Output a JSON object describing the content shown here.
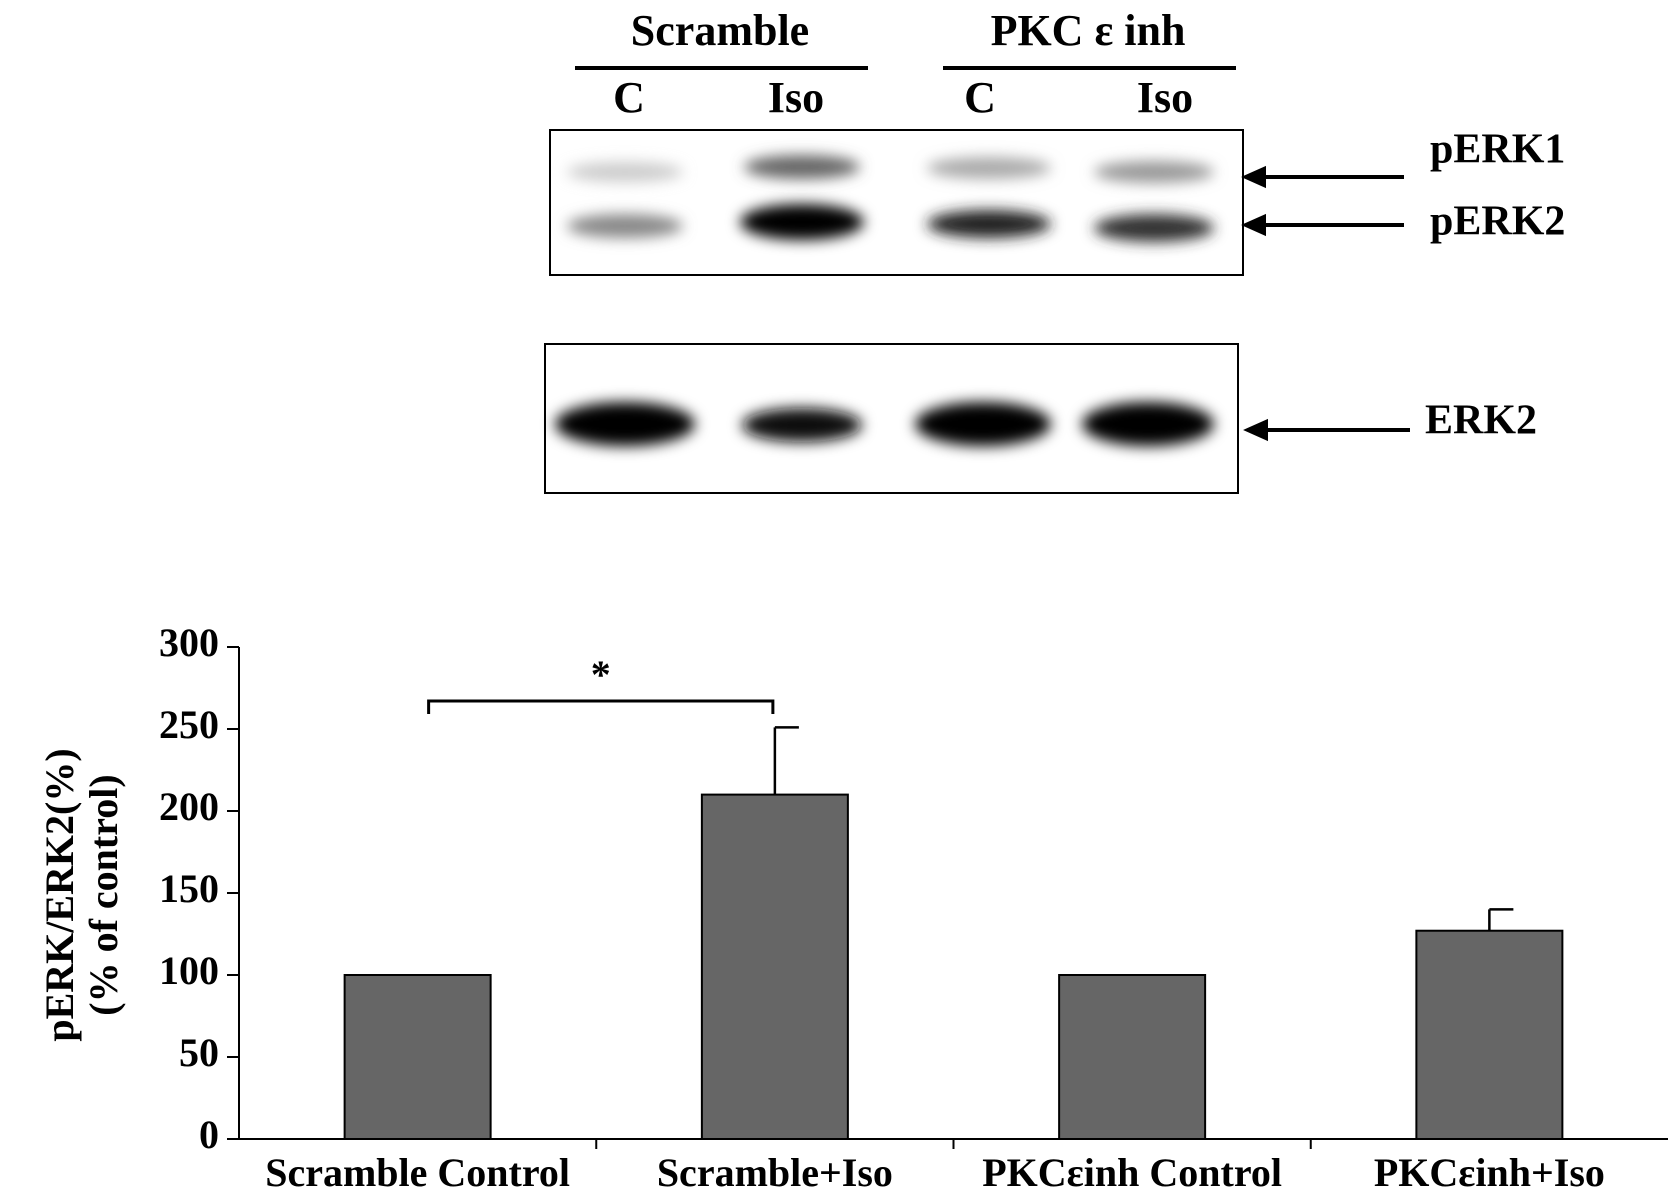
{
  "blot": {
    "groups": [
      "Scramble",
      "PKC ε inh"
    ],
    "lanes": [
      "C",
      "Iso",
      "C",
      "Iso"
    ],
    "bands": [
      "pERK1",
      "pERK2",
      "ERK2"
    ]
  },
  "chart_data": {
    "type": "bar",
    "y_label": [
      "pERK/ERK2(%)",
      "(% of control)"
    ],
    "categories": [
      "Scramble Control",
      "Scramble+Iso",
      "PKCεinh Control",
      "PKCεinh+Iso"
    ],
    "values": [
      100,
      210,
      100,
      127
    ],
    "errors": [
      null,
      41,
      null,
      13
    ],
    "color": "#666666",
    "ylim": [
      0,
      300
    ],
    "yticks": [
      0,
      50,
      100,
      150,
      200,
      250,
      300
    ],
    "annotations": [
      {
        "text": "*"
      }
    ]
  }
}
